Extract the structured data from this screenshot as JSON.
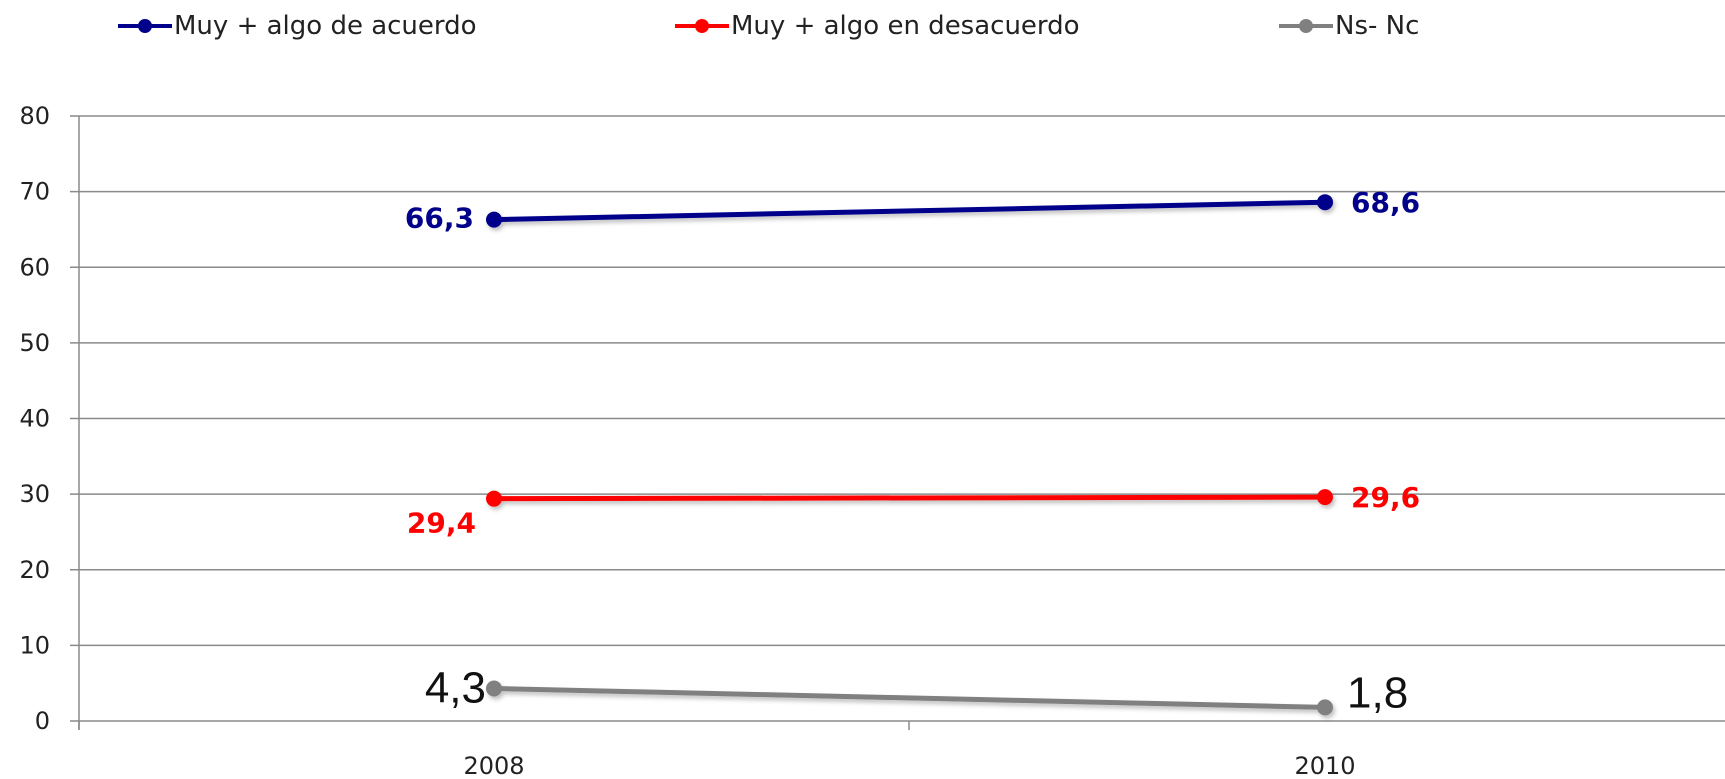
{
  "chart_data": {
    "type": "line",
    "categories": [
      "2008",
      "2010"
    ],
    "ylim": [
      0,
      80
    ],
    "yticks": [
      0,
      10,
      20,
      30,
      40,
      50,
      60,
      70,
      80
    ],
    "grid": true,
    "legend_position": "top",
    "series": [
      {
        "name": "Muy + algo de acuerdo",
        "values": [
          66.3,
          68.6
        ],
        "labels": [
          "66,3",
          "68,6"
        ],
        "color": "#00008B"
      },
      {
        "name": "Muy + algo en desacuerdo",
        "values": [
          29.4,
          29.6
        ],
        "labels": [
          "29,4",
          "29,6"
        ],
        "color": "#FF0000"
      },
      {
        "name": "Ns- Nc",
        "values": [
          4.3,
          1.8
        ],
        "labels": [
          "4,3",
          "1,8"
        ],
        "color": "#808080"
      }
    ]
  }
}
